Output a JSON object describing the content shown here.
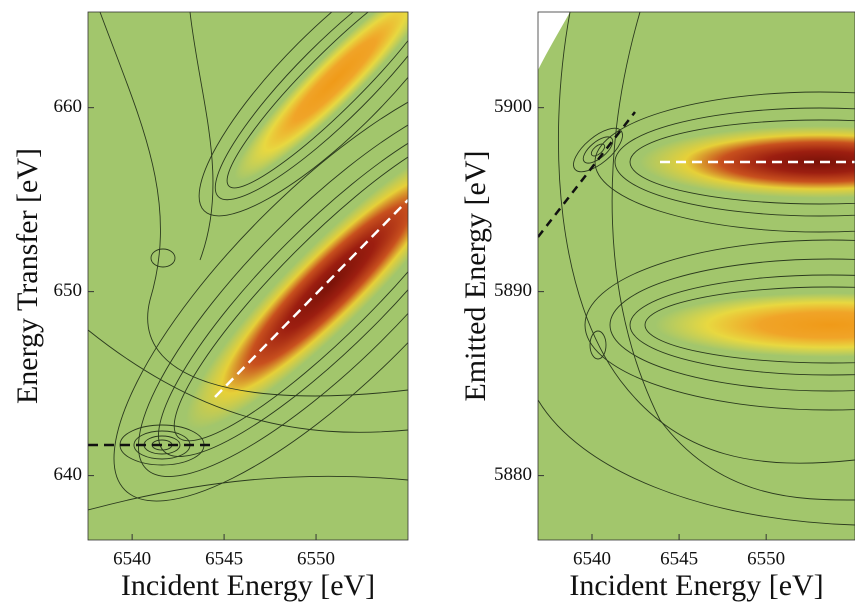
{
  "chart_data": [
    {
      "type": "contour",
      "xlabel": "Incident Energy [eV]",
      "ylabel": "Energy Transfer [eV]",
      "xlim": [
        6537.6,
        6555.0
      ],
      "ylim": [
        636.5,
        665.2
      ],
      "xticks": [
        6540,
        6545,
        6550
      ],
      "yticks": [
        640,
        650,
        660
      ]
    },
    {
      "type": "contour",
      "xlabel": "Incident Energy [eV]",
      "ylabel": "Emitted Energy [eV]",
      "xlim": [
        6536.9,
        6555.1
      ],
      "ylim": [
        5876.5,
        5905.2
      ],
      "xticks": [
        6540,
        6545,
        6550
      ],
      "yticks": [
        5880,
        5890,
        5900
      ]
    }
  ]
}
